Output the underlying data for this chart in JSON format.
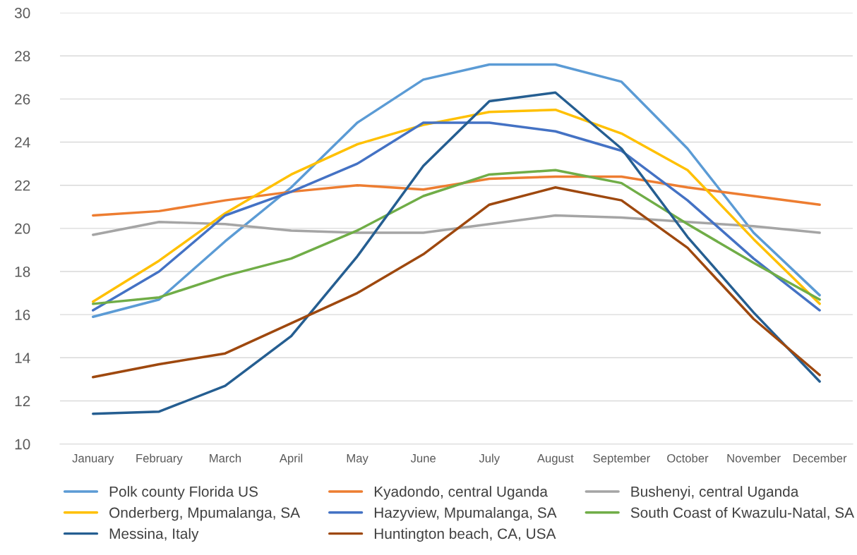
{
  "chart_data": {
    "type": "line",
    "categories": [
      "January",
      "February",
      "March",
      "April",
      "May",
      "June",
      "July",
      "August",
      "September",
      "October",
      "November",
      "December"
    ],
    "series": [
      {
        "name": "Polk county Florida US",
        "color": "#5b9bd5",
        "values": [
          15.9,
          16.7,
          19.4,
          21.9,
          24.9,
          26.9,
          27.6,
          27.6,
          26.8,
          23.7,
          19.8,
          16.9
        ]
      },
      {
        "name": "Kyadondo, central Uganda",
        "color": "#ed7d31",
        "values": [
          20.6,
          20.8,
          21.3,
          21.7,
          22.0,
          21.8,
          22.3,
          22.4,
          22.4,
          21.9,
          21.5,
          21.1
        ]
      },
      {
        "name": "Bushenyi, central Uganda",
        "color": "#a5a5a5",
        "values": [
          19.7,
          20.3,
          20.2,
          19.9,
          19.8,
          19.8,
          20.2,
          20.6,
          20.5,
          20.3,
          20.1,
          19.8
        ]
      },
      {
        "name": "Onderberg, Mpumalanga, SA",
        "color": "#ffc000",
        "values": [
          16.6,
          18.5,
          20.7,
          22.5,
          23.9,
          24.8,
          25.4,
          25.5,
          24.4,
          22.7,
          19.5,
          16.5
        ]
      },
      {
        "name": "Hazyview, Mpumalanga, SA",
        "color": "#4472c4",
        "values": [
          16.2,
          18.0,
          20.6,
          21.7,
          23.0,
          24.9,
          24.9,
          24.5,
          23.6,
          21.3,
          18.6,
          16.2
        ]
      },
      {
        "name": "South Coast of Kwazulu-Natal, SA",
        "color": "#70ad47",
        "values": [
          16.5,
          16.8,
          17.8,
          18.6,
          19.9,
          21.5,
          22.5,
          22.7,
          22.1,
          20.2,
          18.4,
          16.7
        ]
      },
      {
        "name": "Messina, Italy",
        "color": "#255e91",
        "values": [
          11.4,
          11.5,
          12.7,
          15.0,
          18.7,
          22.9,
          25.9,
          26.3,
          23.7,
          19.6,
          16.1,
          12.9
        ]
      },
      {
        "name": "Huntington beach, CA, USA",
        "color": "#9e480e",
        "values": [
          13.1,
          13.7,
          14.2,
          15.6,
          17.0,
          18.8,
          21.1,
          21.9,
          21.3,
          19.1,
          15.8,
          13.2
        ]
      }
    ],
    "ylim": [
      10,
      30
    ],
    "yticks": [
      10,
      12,
      14,
      16,
      18,
      20,
      22,
      24,
      26,
      28,
      30
    ],
    "grid": "y",
    "legend": "bottom",
    "marker": "none",
    "line_style": "solid"
  }
}
